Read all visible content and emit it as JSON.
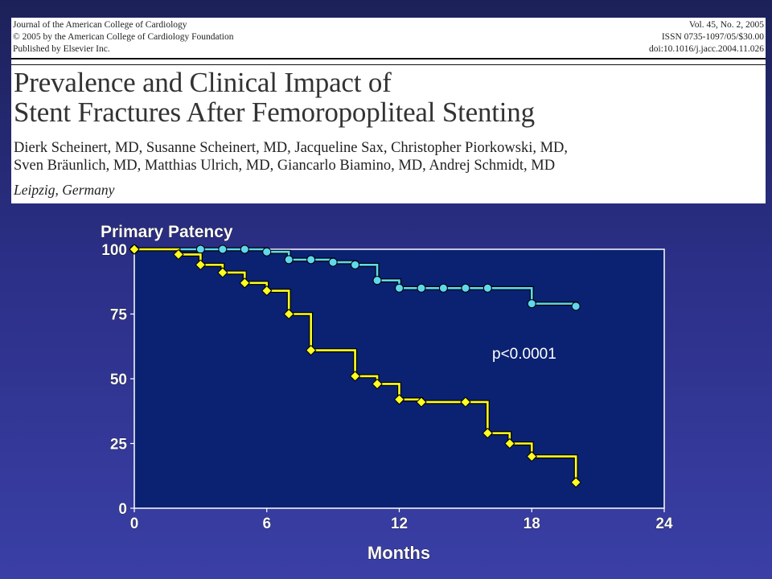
{
  "header": {
    "journal_lines": [
      "Journal of the American College of Cardiology",
      "© 2005 by the American College of Cardiology Foundation",
      "Published by Elsevier Inc."
    ],
    "meta_lines": [
      "Vol. 45, No. 2, 2005",
      "ISSN 0735-1097/05/$30.00",
      "doi:10.1016/j.jacc.2004.11.026"
    ],
    "title_lines": [
      "Prevalence and Clinical Impact of",
      "Stent Fractures After Femoropopliteal Stenting"
    ],
    "author_lines": [
      "Dierk Scheinert, MD, Susanne Scheinert, MD, Jacqueline Sax, Christopher Piorkowski, MD,",
      "Sven Bräunlich, MD, Matthias Ulrich, MD, Giancarlo Biamino, MD, Andrej Schmidt, MD"
    ],
    "location": "Leipzig, Germany"
  },
  "chart_data": {
    "type": "line",
    "title": "Primary Patency",
    "xlabel": "Months",
    "ylabel": "",
    "xlim": [
      0,
      24
    ],
    "ylim": [
      0,
      100
    ],
    "x_ticks": [
      0,
      6,
      12,
      18,
      24
    ],
    "y_ticks": [
      0,
      25,
      50,
      75,
      100
    ],
    "annotation": "p<0.0001",
    "background_color": "#0b2272",
    "series": [
      {
        "color": "#5fd8ef",
        "marker": "circle",
        "points": [
          [
            0,
            100
          ],
          [
            3,
            100
          ],
          [
            4,
            100
          ],
          [
            5,
            100
          ],
          [
            6,
            99
          ],
          [
            7,
            96
          ],
          [
            8,
            96
          ],
          [
            9,
            95
          ],
          [
            10,
            94
          ],
          [
            11,
            88
          ],
          [
            12,
            85
          ],
          [
            13,
            85
          ],
          [
            14,
            85
          ],
          [
            15,
            85
          ],
          [
            16,
            85
          ],
          [
            18,
            79
          ],
          [
            20,
            78
          ]
        ]
      },
      {
        "color": "#ffff22",
        "marker": "diamond",
        "points": [
          [
            0,
            100
          ],
          [
            2,
            98
          ],
          [
            3,
            94
          ],
          [
            4,
            91
          ],
          [
            5,
            87
          ],
          [
            6,
            84
          ],
          [
            7,
            75
          ],
          [
            8,
            61
          ],
          [
            10,
            51
          ],
          [
            11,
            48
          ],
          [
            12,
            42
          ],
          [
            13,
            41
          ],
          [
            15,
            41
          ],
          [
            16,
            29
          ],
          [
            17,
            25
          ],
          [
            18,
            20
          ],
          [
            20,
            10
          ]
        ]
      }
    ]
  }
}
